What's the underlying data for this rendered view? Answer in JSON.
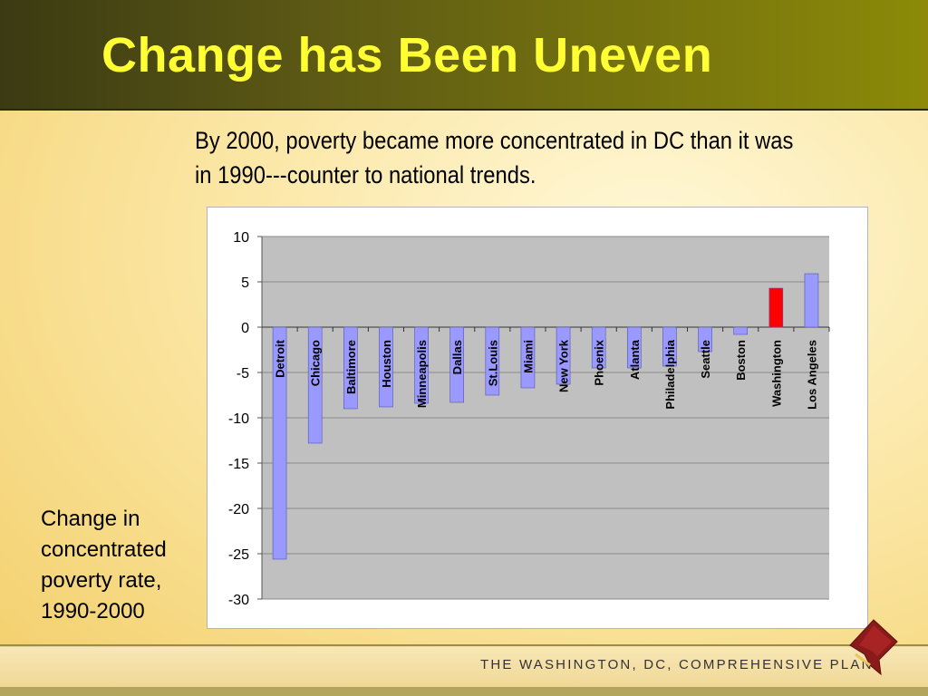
{
  "slide": {
    "title": "Change has Been Uneven",
    "subtitle": "By 2000, poverty became more concentrated in DC than it was in 1990---counter to national trends.",
    "caption": "Change in concentrated poverty rate, 1990-2000",
    "footer": "THE WASHINGTON, DC, COMPREHENSIVE PLAN",
    "logo_icon": "dc-map-logo-icon"
  },
  "colors": {
    "bar_default": "#9999ff",
    "bar_highlight": "#ff0000",
    "plot_bg": "#c0c0c0",
    "title_text": "#ffff33"
  },
  "chart_data": {
    "type": "bar",
    "title": "",
    "xlabel": "",
    "ylabel": "",
    "ylim": [
      -30,
      10
    ],
    "yticks": [
      10,
      5,
      0,
      -5,
      -10,
      -15,
      -20,
      -25,
      -30
    ],
    "grid": true,
    "legend": "none",
    "categories": [
      "Detroit",
      "Chicago",
      "Baltimore",
      "Houston",
      "Minneapolis",
      "Dallas",
      "St.Louis",
      "Miami",
      "New York",
      "Phoenix",
      "Atlanta",
      "Philadelphia",
      "Seattle",
      "Boston",
      "Washington",
      "Los Angeles"
    ],
    "values": [
      -25.6,
      -12.8,
      -9,
      -8.8,
      -8.4,
      -8.3,
      -7.5,
      -6.7,
      -6.3,
      -4.5,
      -4.5,
      -4.3,
      -2.7,
      -0.8,
      4.3,
      5.9
    ],
    "highlight": "Washington"
  }
}
